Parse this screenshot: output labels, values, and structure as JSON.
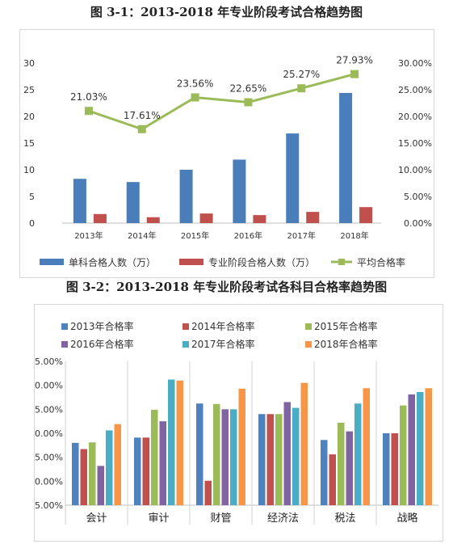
{
  "figure1": {
    "caption": "图 3-1：2013-2018 年专业阶段考试合格趋势图",
    "chart_data": {
      "type": "bar",
      "categories": [
        "2013年",
        "2014年",
        "2015年",
        "2016年",
        "2017年",
        "2018年"
      ],
      "series": [
        {
          "name": "单科合格人数（万）",
          "type": "bar",
          "axis": "left",
          "color": "#4a7ebb",
          "values": [
            8.3,
            7.7,
            10.0,
            11.9,
            16.8,
            24.4
          ]
        },
        {
          "name": "专业阶段合格人数（万）",
          "type": "bar",
          "axis": "left",
          "color": "#c0504d",
          "values": [
            1.7,
            1.1,
            1.8,
            1.5,
            2.1,
            3.0
          ]
        },
        {
          "name": "平均合格率",
          "type": "line",
          "axis": "right",
          "color": "#9bbb59",
          "values": [
            21.03,
            17.61,
            23.56,
            22.65,
            25.27,
            27.93
          ]
        }
      ],
      "point_labels": [
        "21.03%",
        "17.61%",
        "23.56%",
        "22.65%",
        "25.27%",
        "27.93%"
      ],
      "ylim_left": [
        0,
        30
      ],
      "yticks_left": [
        "0",
        "5",
        "10",
        "15",
        "20",
        "25",
        "30"
      ],
      "ylim_right": [
        0,
        30
      ],
      "yticks_right": [
        "0.00%",
        "5.00%",
        "10.00%",
        "15.00%",
        "20.00%",
        "25.00%",
        "30.00%"
      ],
      "grid": false,
      "legend_position": "bottom"
    }
  },
  "figure2": {
    "caption": "图 3-2：2013-2018 年专业阶段考试各科目合格率趋势图",
    "chart_data": {
      "type": "bar",
      "categories": [
        "会计",
        "审计",
        "财管",
        "经济法",
        "税法",
        "战略"
      ],
      "series": [
        {
          "name": "2013年合格率",
          "color": "#4f81bd",
          "values": [
            18.0,
            19.1,
            26.2,
            24.0,
            18.6,
            20.0
          ]
        },
        {
          "name": "2014年合格率",
          "color": "#c0504d",
          "values": [
            16.7,
            19.1,
            10.1,
            24.0,
            15.6,
            20.0
          ]
        },
        {
          "name": "2015年合格率",
          "color": "#9bbb59",
          "values": [
            18.1,
            24.9,
            26.1,
            24.0,
            22.2,
            25.8
          ]
        },
        {
          "name": "2016年合格率",
          "color": "#8064a2",
          "values": [
            13.2,
            22.5,
            25.0,
            26.5,
            20.4,
            28.1
          ]
        },
        {
          "name": "2017年合格率",
          "color": "#4bacc6",
          "values": [
            20.6,
            31.2,
            25.0,
            25.3,
            26.2,
            28.6
          ]
        },
        {
          "name": "2018年合格率",
          "color": "#f79646",
          "values": [
            21.9,
            31.0,
            29.3,
            30.5,
            29.4,
            29.4
          ]
        }
      ],
      "ylim": [
        5,
        35
      ],
      "yticks": [
        "5.00%",
        "10.00%",
        "15.00%",
        "20.00%",
        "25.00%",
        "30.00%",
        "35.00%"
      ],
      "grid": false,
      "legend_position": "top"
    }
  }
}
